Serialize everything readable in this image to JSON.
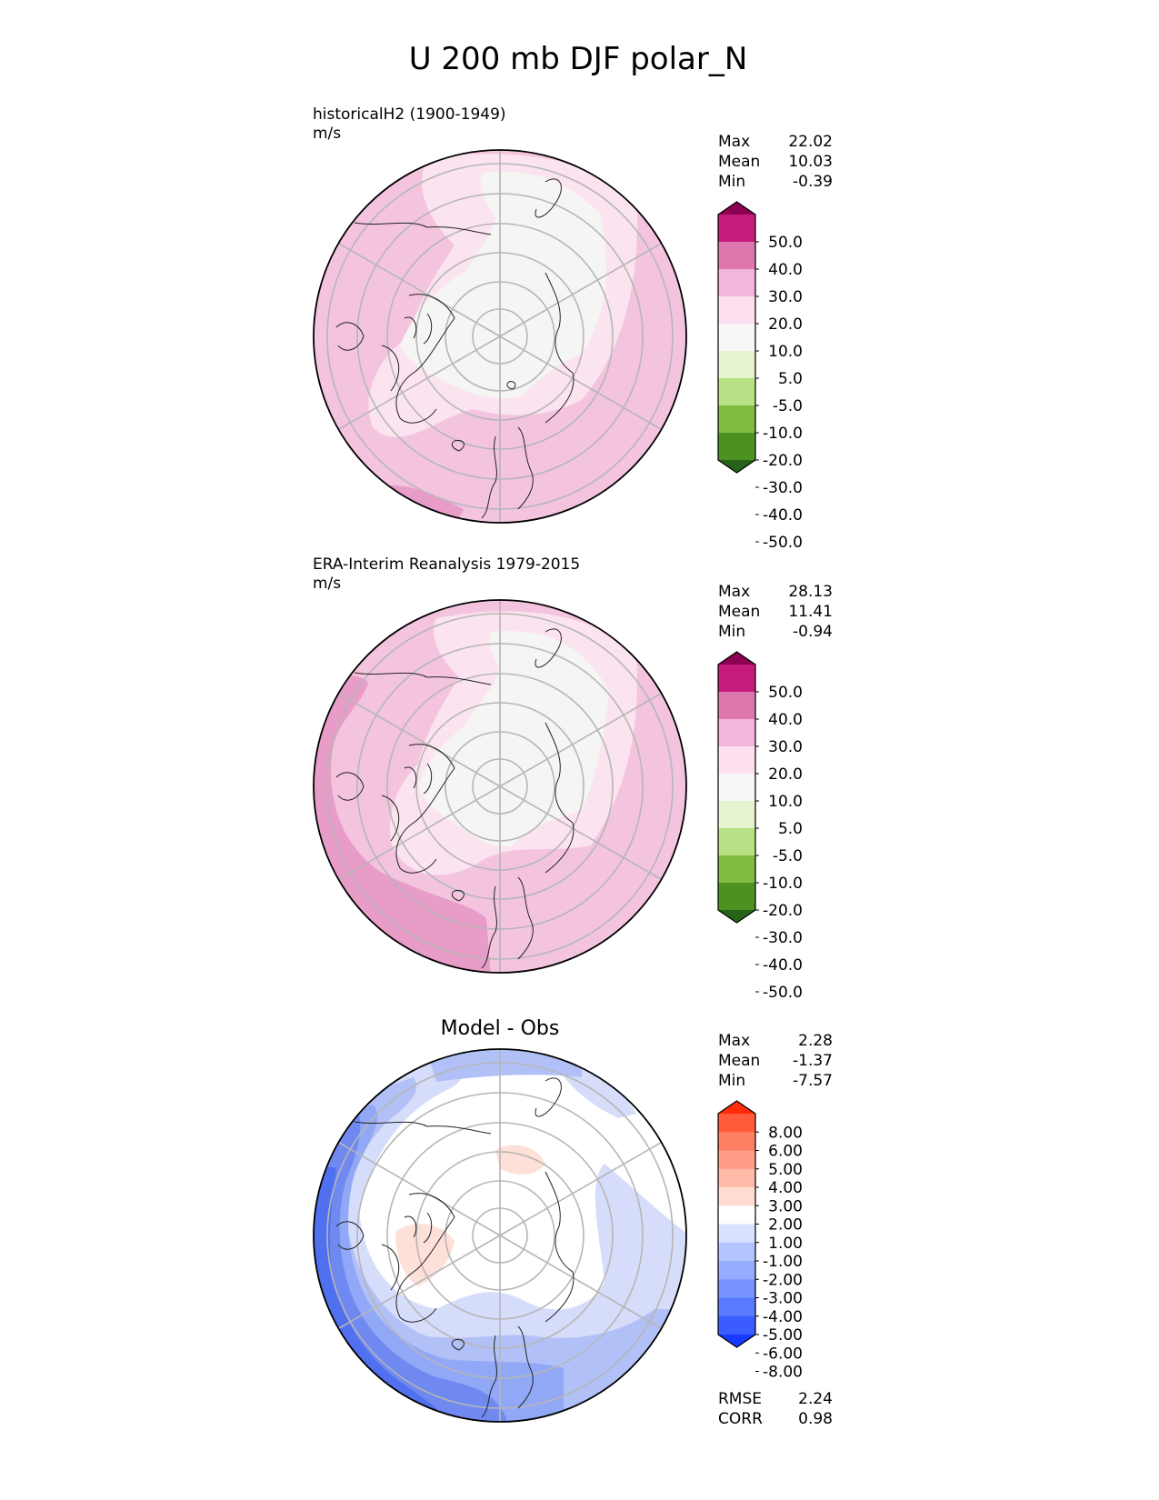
{
  "chart_data": [
    {
      "type": "heatmap",
      "projection": "north-polar-stereographic",
      "title": "U 200 mb DJF polar_N",
      "subtitle": "historicalH2 (1900-1949)",
      "units": "m/s",
      "stats": [
        {
          "label": "Max",
          "value": "22.02"
        },
        {
          "label": "Mean",
          "value": "10.03"
        },
        {
          "label": "Min",
          "value": "-0.39"
        }
      ],
      "colorbar": {
        "ticks": [
          "50.0",
          "40.0",
          "30.0",
          "20.0",
          "10.0",
          "5.0",
          "-5.0",
          "-10.0",
          "-20.0",
          "-30.0",
          "-40.0",
          "-50.0"
        ],
        "colors": [
          "#8e0152",
          "#c51b7d",
          "#de77ae",
          "#f1b6da",
          "#fde0ef",
          "#f7f7f7",
          "#e6f5d0",
          "#b8e186",
          "#7fbc41",
          "#4d9221",
          "#276419"
        ],
        "extend": "both"
      },
      "fill_regions": [
        {
          "value_range": [
            10.0,
            20.0
          ],
          "color": "#f4c4df"
        },
        {
          "value_range": [
            5.0,
            10.0
          ],
          "color": "#fbe4f0"
        },
        {
          "value_range": [
            -5.0,
            5.0
          ],
          "color": "#f5f5f3"
        },
        {
          "value_range": [
            20.0,
            30.0
          ],
          "color": "#e89cc8"
        }
      ]
    },
    {
      "type": "heatmap",
      "projection": "north-polar-stereographic",
      "subtitle": "ERA-Interim Reanalysis 1979-2015",
      "units": "m/s",
      "stats": [
        {
          "label": "Max",
          "value": "28.13"
        },
        {
          "label": "Mean",
          "value": "11.41"
        },
        {
          "label": "Min",
          "value": "-0.94"
        }
      ],
      "colorbar": {
        "ticks": [
          "50.0",
          "40.0",
          "30.0",
          "20.0",
          "10.0",
          "5.0",
          "-5.0",
          "-10.0",
          "-20.0",
          "-30.0",
          "-40.0",
          "-50.0"
        ],
        "colors": [
          "#8e0152",
          "#c51b7d",
          "#de77ae",
          "#f1b6da",
          "#fde0ef",
          "#f7f7f7",
          "#e6f5d0",
          "#b8e186",
          "#7fbc41",
          "#4d9221",
          "#276419"
        ],
        "extend": "both"
      },
      "fill_regions": [
        {
          "value_range": [
            10.0,
            20.0
          ],
          "color": "#f4c4df"
        },
        {
          "value_range": [
            5.0,
            10.0
          ],
          "color": "#fbe4f0"
        },
        {
          "value_range": [
            -5.0,
            5.0
          ],
          "color": "#f5f5f3"
        },
        {
          "value_range": [
            20.0,
            30.0
          ],
          "color": "#e89cc8"
        }
      ]
    },
    {
      "type": "heatmap",
      "projection": "north-polar-stereographic",
      "title": "Model - Obs",
      "stats": [
        {
          "label": "Max",
          "value": "2.28"
        },
        {
          "label": "Mean",
          "value": "-1.37"
        },
        {
          "label": "Min",
          "value": "-7.57"
        }
      ],
      "metrics": [
        {
          "label": "RMSE",
          "value": "2.24"
        },
        {
          "label": "CORR",
          "value": "0.98"
        }
      ],
      "colorbar": {
        "ticks": [
          "8.00",
          "6.00",
          "5.00",
          "4.00",
          "3.00",
          "2.00",
          "1.00",
          "-1.00",
          "-2.00",
          "-3.00",
          "-4.00",
          "-5.00",
          "-6.00",
          "-8.00"
        ],
        "colors": [
          "#ff2b0a",
          "#ff5a3a",
          "#ff7f65",
          "#ff9d86",
          "#ffbba8",
          "#ffdcd2",
          "#ffffff",
          "#d9e1ff",
          "#b4c4ff",
          "#96acff",
          "#7894ff",
          "#5a7aff",
          "#3b5dff",
          "#1638ff"
        ],
        "extend": "both"
      },
      "fill_regions": [
        {
          "value_range": [
            -1.0,
            1.0
          ],
          "color": "#ffffff"
        },
        {
          "value_range": [
            -2.0,
            -1.0
          ],
          "color": "#d6ddfb"
        },
        {
          "value_range": [
            -3.0,
            -2.0
          ],
          "color": "#b2c0f8"
        },
        {
          "value_range": [
            -4.0,
            -3.0
          ],
          "color": "#91a8f6"
        },
        {
          "value_range": [
            -5.0,
            -4.0
          ],
          "color": "#6f89f1"
        },
        {
          "value_range": [
            -6.0,
            -5.0
          ],
          "color": "#5070f0"
        },
        {
          "value_range": [
            -8.0,
            -6.0
          ],
          "color": "#2d4cf0"
        },
        {
          "value_range": [
            1.0,
            2.0
          ],
          "color": "#fde0d8"
        }
      ]
    }
  ]
}
